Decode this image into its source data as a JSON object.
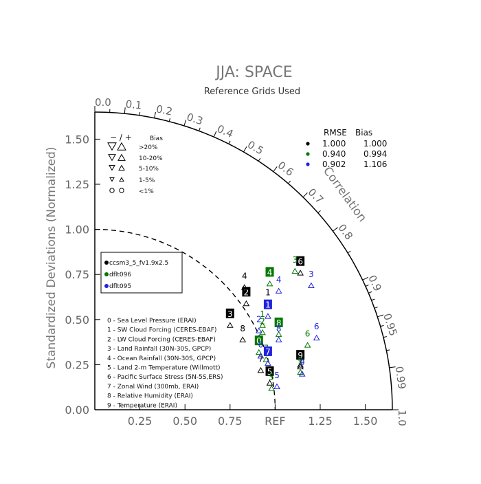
{
  "chart_data": {
    "type": "scatter",
    "title": "JJA: SPACE",
    "subtitle": "Reference Grids Used",
    "ylabel": "Standardized Deviations (Normalized)",
    "axis_label_correlation": "Correlation",
    "ref_label": "REF",
    "x_ticks": [
      "0.25",
      "0.50",
      "0.75",
      "1.25",
      "1.50"
    ],
    "x_tick_values": [
      0.25,
      0.5,
      0.75,
      1.25,
      1.5
    ],
    "y_ticks": [
      "0.00",
      "0.25",
      "0.50",
      "0.75",
      "1.00",
      "1.25",
      "1.50"
    ],
    "y_tick_values": [
      0,
      0.25,
      0.5,
      0.75,
      1.0,
      1.25,
      1.5
    ],
    "radius_max": 1.65,
    "corr_ticks": [
      "0.0",
      "0.1",
      "0.2",
      "0.3",
      "0.4",
      "0.5",
      "0.6",
      "0.7",
      "0.8",
      "0.9",
      "0.95",
      "0.99",
      "1.0"
    ],
    "corr_tick_values": [
      0.0,
      0.1,
      0.2,
      0.3,
      0.4,
      0.5,
      0.6,
      0.7,
      0.8,
      0.9,
      0.95,
      0.99,
      1.0
    ],
    "series": [
      {
        "name": "ccsm3_5_fv1.9x2.5",
        "color": "#000000",
        "points": [
          {
            "id": "0",
            "x": 1.14,
            "y": 0.28
          },
          {
            "id": "1",
            "x": 0.96,
            "y": 0.62
          },
          {
            "id": "2",
            "x": 0.84,
            "y": 0.62
          },
          {
            "id": "3",
            "x": 0.75,
            "y": 0.5
          },
          {
            "id": "4",
            "x": 0.83,
            "y": 0.71
          },
          {
            "id": "5",
            "x": 0.97,
            "y": 0.18
          },
          {
            "id": "6",
            "x": 1.14,
            "y": 0.79
          },
          {
            "id": "7",
            "x": 0.92,
            "y": 0.25
          },
          {
            "id": "8",
            "x": 0.82,
            "y": 0.42
          },
          {
            "id": "9",
            "x": 1.14,
            "y": 0.27
          }
        ]
      },
      {
        "name": "dflt096",
        "color": "#007700",
        "points": [
          {
            "id": "0",
            "x": 0.91,
            "y": 0.35
          },
          {
            "id": "1",
            "x": 0.93,
            "y": 0.5
          },
          {
            "id": "2",
            "x": 0.93,
            "y": 0.46
          },
          {
            "id": "3",
            "x": 1.11,
            "y": 0.8
          },
          {
            "id": "4",
            "x": 0.97,
            "y": 0.73
          },
          {
            "id": "5",
            "x": 0.98,
            "y": 0.15
          },
          {
            "id": "6",
            "x": 1.18,
            "y": 0.39
          },
          {
            "id": "7",
            "x": 0.95,
            "y": 0.31
          },
          {
            "id": "8",
            "x": 1.02,
            "y": 0.45
          },
          {
            "id": "9",
            "x": 1.14,
            "y": 0.24
          }
        ]
      },
      {
        "name": "dflt095",
        "color": "#2222dd",
        "points": [
          {
            "id": "0",
            "x": 0.92,
            "y": 0.33
          },
          {
            "id": "1",
            "x": 0.96,
            "y": 0.55
          },
          {
            "id": "2",
            "x": 0.91,
            "y": 0.47
          },
          {
            "id": "3",
            "x": 1.2,
            "y": 0.72
          },
          {
            "id": "4",
            "x": 1.02,
            "y": 0.69
          },
          {
            "id": "5",
            "x": 1.01,
            "y": 0.16
          },
          {
            "id": "6",
            "x": 1.23,
            "y": 0.43
          },
          {
            "id": "7",
            "x": 0.96,
            "y": 0.29
          },
          {
            "id": "8",
            "x": 1.02,
            "y": 0.42
          },
          {
            "id": "9",
            "x": 1.15,
            "y": 0.23
          }
        ]
      }
    ],
    "stats_table": {
      "header_rmse": "RMSE",
      "header_bias": "Bias",
      "rows": [
        {
          "color": "#000000",
          "rmse": "1.000",
          "bias": "1.000"
        },
        {
          "color": "#007700",
          "rmse": "0.940",
          "bias": "0.994"
        },
        {
          "color": "#2222dd",
          "rmse": "0.902",
          "bias": "1.106"
        }
      ]
    },
    "bias_legend": {
      "header_sign": "− / +",
      "header_bias": "Bias",
      "rows": [
        ">20%",
        "10-20%",
        "5-10%",
        "1-5%",
        "<1%"
      ]
    },
    "variables": [
      "0 - Sea Level Pressure (ERAI)",
      "1 - SW Cloud Forcing (CERES-EBAF)",
      "2 - LW Cloud Forcing (CERES-EBAF)",
      "3 - Land Rainfall (30N-30S, GPCP)",
      "4 - Ocean Rainfall (30N-30S, GPCP)",
      "5 - Land 2-m Temperature (Willmott)",
      "6 - Pacific Surface Stress (5N-5S,ERS)",
      "7 - Zonal Wind (300mb, ERAI)",
      "8 - Relative Humidity (ERAI)",
      "9 - Temperature (ERAI)"
    ]
  }
}
